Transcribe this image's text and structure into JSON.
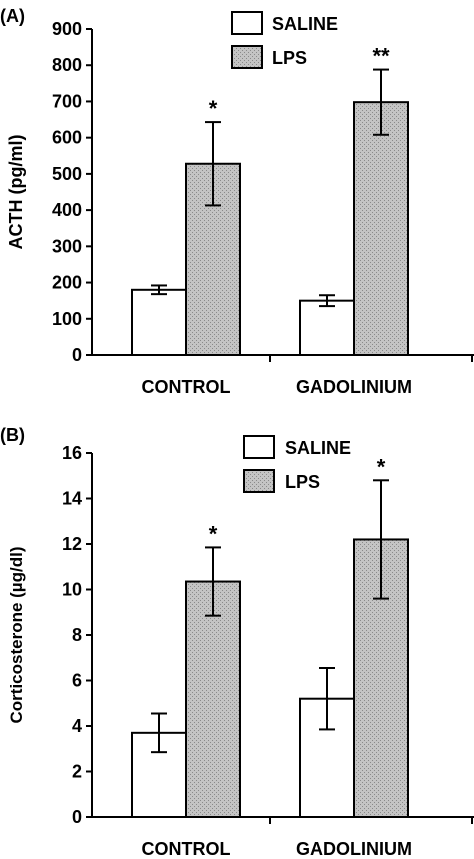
{
  "chart_data": [
    {
      "panel": "(A)",
      "type": "bar",
      "categories": [
        "CONTROL",
        "GADOLINIUM"
      ],
      "series": [
        {
          "name": "SALINE",
          "values": [
            180,
            150
          ],
          "errors": [
            12,
            15
          ]
        },
        {
          "name": "LPS",
          "values": [
            528,
            698
          ],
          "errors": [
            115,
            90
          ]
        }
      ],
      "significance": {
        "LPS": [
          "*",
          "**"
        ]
      },
      "ylabel": "ACTH (pg/ml)",
      "xlabel": "",
      "ylim": [
        0,
        900
      ],
      "yticks": [
        0,
        100,
        200,
        300,
        400,
        500,
        600,
        700,
        800,
        900
      ],
      "legend": "top-center",
      "grid": false
    },
    {
      "panel": "(B)",
      "type": "bar",
      "categories": [
        "CONTROL",
        "GADOLINIUM"
      ],
      "series": [
        {
          "name": "SALINE",
          "values": [
            3.7,
            5.2
          ],
          "errors": [
            0.85,
            1.35
          ]
        },
        {
          "name": "LPS",
          "values": [
            10.35,
            12.2
          ],
          "errors": [
            1.5,
            2.6
          ]
        }
      ],
      "significance": {
        "LPS": [
          "*",
          "*"
        ]
      },
      "ylabel": "Corticosterone (µg/dl)",
      "xlabel": "",
      "ylim": [
        0,
        16
      ],
      "yticks": [
        0,
        2,
        4,
        6,
        8,
        10,
        12,
        14,
        16
      ],
      "legend": "top-center",
      "grid": false
    }
  ],
  "colors": {
    "saline_fill": "#ffffff",
    "lps_fill": "#c4c4c4",
    "lps_pattern_dot": "#8a8a8a",
    "stroke": "#000000"
  }
}
